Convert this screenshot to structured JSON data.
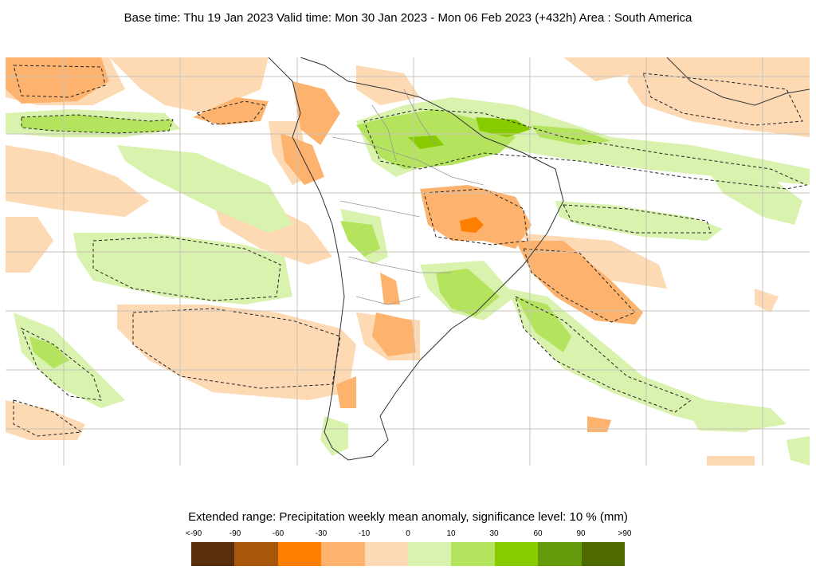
{
  "header": {
    "title": "Base time: Thu 19 Jan 2023 Valid time: Mon 30 Jan 2023 - Mon 06 Feb 2023 (+432h) Area : South America"
  },
  "legend": {
    "title": "Extended range: Precipitation weekly mean anomaly, significance level: 10 % (mm)",
    "ticks": [
      "<-90",
      "-90",
      "-60",
      "-30",
      "-10",
      "0",
      "10",
      "30",
      "60",
      "90",
      ">90"
    ],
    "colors": [
      "#5a2e0c",
      "#a8560a",
      "#ff8000",
      "#fdb36e",
      "#fdd9b4",
      "#d9f2ad",
      "#b4e45e",
      "#88cc00",
      "#669a0d",
      "#4f6b00"
    ]
  },
  "map": {
    "area": "South America"
  }
}
